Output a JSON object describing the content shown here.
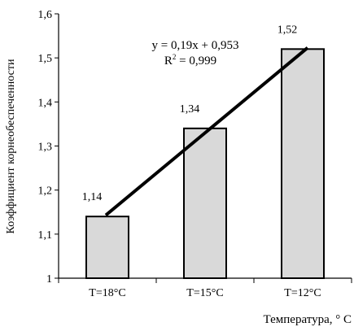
{
  "chart_data": {
    "type": "bar",
    "categories": [
      "T=18°C",
      "T=15°C",
      "T=12°C"
    ],
    "values": [
      1.14,
      1.34,
      1.52
    ],
    "data_labels": [
      "1,14",
      "1,34",
      "1,52"
    ],
    "ylabel": "Коэффициент корнеобеспеченности",
    "xlabel": "Температура, ° С",
    "ylim": [
      1,
      1.6
    ],
    "yticks": [
      1,
      1.1,
      1.2,
      1.3,
      1.4,
      1.5,
      1.6
    ],
    "ytick_labels": [
      "1",
      "1,1",
      "1,2",
      "1,3",
      "1,4",
      "1,5",
      "1,6"
    ],
    "grid": false,
    "bar_color": "#d9d9d9",
    "bar_edge_color": "#000000",
    "trendline": {
      "type": "linear",
      "slope": 0.19,
      "intercept": 0.953,
      "equation": "y = 0,19x + 0,953",
      "r2_prefix": "R",
      "r2_suffix": " = 0,999",
      "color": "#000000"
    }
  }
}
